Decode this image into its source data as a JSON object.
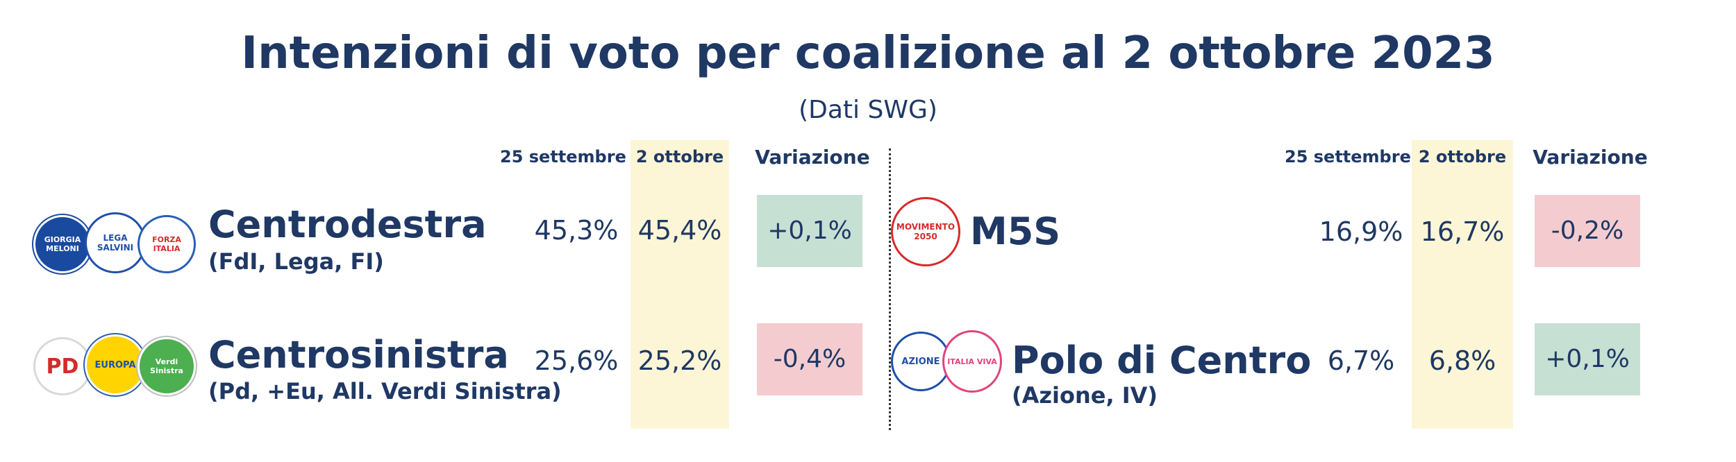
{
  "title": "Intenzioni di voto per coalizione al 2 ottobre 2023",
  "subtitle": "(Dati SWG)",
  "columns": {
    "prev": "25 settembre",
    "curr": "2 ottobre",
    "change": "Variazione"
  },
  "colors": {
    "positive": "#c6e0d4",
    "negative": "#f4cccf",
    "highlight": "#fdf6d6",
    "text": "#1f3864"
  },
  "rows": [
    {
      "name": "Centrodestra",
      "sub": "(FdI, Lega, FI)",
      "prev": "45,3%",
      "curr": "45,4%",
      "change": "+0,1%",
      "logos": [
        {
          "icon": "fratelli-ditalia-logo",
          "text": "GIORGIA MELONI"
        },
        {
          "icon": "lega-logo",
          "text": "LEGA SALVINI"
        },
        {
          "icon": "forza-italia-logo",
          "text": "FORZA ITALIA"
        }
      ]
    },
    {
      "name": "Centrosinistra",
      "sub": "(Pd, +Eu, All. Verdi Sinistra)",
      "prev": "25,6%",
      "curr": "25,2%",
      "change": "-0,4%",
      "logos": [
        {
          "icon": "partito-democratico-logo",
          "text": "PD"
        },
        {
          "icon": "piu-europa-logo",
          "text": "EUROPA"
        },
        {
          "icon": "verdi-sinistra-logo",
          "text": "Verdi Sinistra"
        }
      ]
    },
    {
      "name": "M5S",
      "sub": "",
      "prev": "16,9%",
      "curr": "16,7%",
      "change": "-0,2%",
      "logos": [
        {
          "icon": "movimento-5-stelle-logo",
          "text": "MOVIMENTO 2050"
        }
      ]
    },
    {
      "name": "Polo di Centro",
      "sub": "(Azione, IV)",
      "prev": "6,7%",
      "curr": "6,8%",
      "change": "+0,1%",
      "logos": [
        {
          "icon": "azione-logo",
          "text": "AZIONE"
        },
        {
          "icon": "italia-viva-logo",
          "text": "ITALIA VIVA"
        }
      ]
    }
  ],
  "chart_data": {
    "type": "table",
    "title": "Intenzioni di voto per coalizione al 2 ottobre 2023",
    "subtitle": "(Dati SWG)",
    "columns": [
      "25 settembre",
      "2 ottobre",
      "Variazione"
    ],
    "series": [
      {
        "name": "Centrodestra",
        "values": [
          45.3,
          45.4,
          0.1
        ]
      },
      {
        "name": "Centrosinistra",
        "values": [
          25.6,
          25.2,
          -0.4
        ]
      },
      {
        "name": "M5S",
        "values": [
          16.9,
          16.7,
          -0.2
        ]
      },
      {
        "name": "Polo di Centro",
        "values": [
          6.7,
          6.8,
          0.1
        ]
      }
    ]
  }
}
